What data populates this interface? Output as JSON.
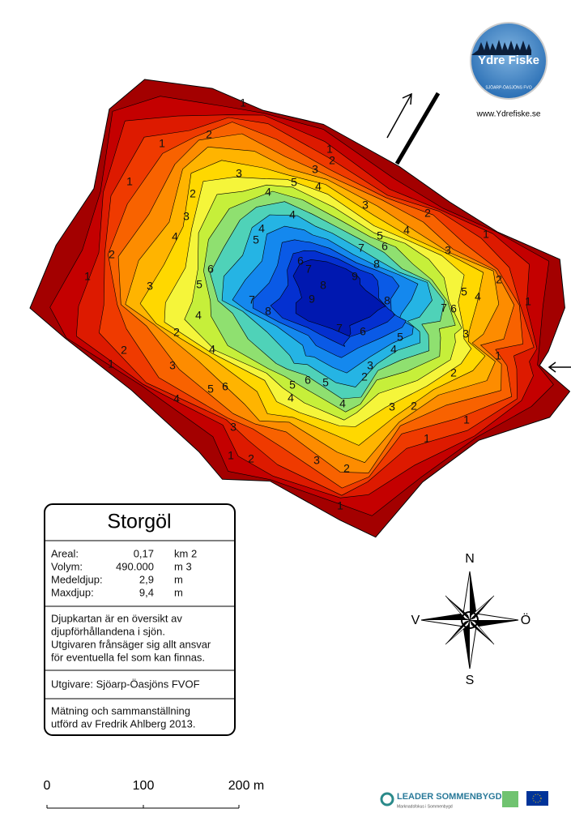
{
  "logo": {
    "title": "Ydre Fiske",
    "subtitle": "SJÖARP-ÖASJÖNS FVO",
    "url": "www.Ydrefiske.se"
  },
  "info_box": {
    "title": "Storgöl",
    "stats": [
      [
        "Areal:",
        "0,17",
        "km 2"
      ],
      [
        "Volym:",
        "490.000",
        "m 3"
      ],
      [
        "Medeldjup:",
        "2,9",
        "m"
      ],
      [
        "Maxdjup:",
        "9,4",
        "m"
      ]
    ],
    "disclaimer": [
      "Djupkartan är en översikt av",
      "djupförhållandena i sjön.",
      "Utgivaren frånsäger sig allt ansvar",
      "för eventuella fel som kan finnas."
    ],
    "publisher": "Utgivare: Sjöarp-Öasjöns FVOF",
    "credits": [
      "Mätning och sammanställning",
      "utförd av Fredrik Ahlberg 2013."
    ]
  },
  "compass": {
    "north": "N",
    "south": "S",
    "west": "V",
    "east": "Ö"
  },
  "scale": [
    "0",
    "100",
    "200 m"
  ],
  "sponsors": {
    "leader": "LEADER SOMMENBYGD",
    "leader_sub": "Marknadsfokus i Sommenbygd"
  },
  "depth_labels": [
    "1",
    "1",
    "1",
    "1",
    "1",
    "1",
    "1",
    "1",
    "1",
    "1",
    "1",
    "1",
    "1",
    "2",
    "2",
    "2",
    "2",
    "2",
    "2",
    "2",
    "2",
    "2",
    "2",
    "2",
    "2",
    "2",
    "3",
    "3",
    "3",
    "3",
    "3",
    "3",
    "3",
    "3",
    "3",
    "3",
    "3",
    "3",
    "4",
    "4",
    "4",
    "4",
    "4",
    "4",
    "4",
    "4",
    "4",
    "4",
    "4",
    "4",
    "4",
    "5",
    "5",
    "5",
    "5",
    "5",
    "5",
    "5",
    "5",
    "5",
    "6",
    "6",
    "6",
    "6",
    "6",
    "6",
    "6",
    "7",
    "7",
    "7",
    "7",
    "7",
    "8",
    "8",
    "8",
    "8",
    "9",
    "9"
  ]
}
